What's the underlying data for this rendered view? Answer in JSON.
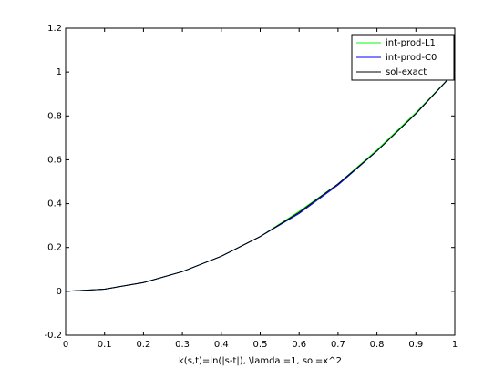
{
  "chart_data": {
    "type": "line",
    "xlabel": "k(s,t)=ln(|s-t|), \\lamda =1, sol=x^2",
    "x": [
      0,
      0.1,
      0.2,
      0.3,
      0.4,
      0.5,
      0.6,
      0.7,
      0.8,
      0.9,
      1
    ],
    "series": [
      {
        "name": "int-prod-L1",
        "color": "#00ff00",
        "values": [
          0,
          0.01,
          0.04,
          0.09,
          0.16,
          0.25,
          0.365,
          0.49,
          0.645,
          0.815,
          1
        ]
      },
      {
        "name": "int-prod-C0",
        "color": "#0000ff",
        "values": [
          0,
          0.01,
          0.04,
          0.09,
          0.16,
          0.25,
          0.355,
          0.485,
          0.64,
          0.81,
          1
        ]
      },
      {
        "name": "sol-exact",
        "color": "#000000",
        "values": [
          0,
          0.01,
          0.04,
          0.09,
          0.16,
          0.25,
          0.36,
          0.49,
          0.64,
          0.81,
          1
        ]
      }
    ],
    "xlim": [
      0,
      1
    ],
    "xticks": [
      0,
      0.1,
      0.2,
      0.3,
      0.4,
      0.5,
      0.6,
      0.7,
      0.8,
      0.9,
      1
    ],
    "ylim": [
      -0.2,
      1.2
    ],
    "yticks": [
      -0.2,
      0,
      0.2,
      0.4,
      0.6,
      0.8,
      1,
      1.2
    ],
    "grid": false,
    "legend": "northeast"
  }
}
